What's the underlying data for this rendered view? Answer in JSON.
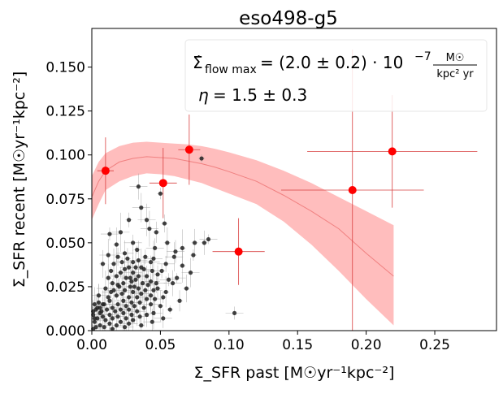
{
  "chart_data": {
    "type": "scatter",
    "title": "eso498-g5",
    "xlabel": "Σ_SFR past [M☉yr⁻¹kpc⁻²]",
    "ylabel": "Σ_SFR recent [M☉yr⁻¹kpc⁻²]",
    "xlim": [
      0.0,
      0.295
    ],
    "ylim": [
      0.0,
      0.172
    ],
    "xticks": [
      "0.00",
      "0.05",
      "0.10",
      "0.15",
      "0.20",
      "0.25"
    ],
    "yticks": [
      "0.000",
      "0.025",
      "0.050",
      "0.075",
      "0.100",
      "0.125",
      "0.150"
    ],
    "annotation": {
      "flow_label": "Σ̇",
      "flow_sub": "flow max",
      "flow_value": "= (2.0 ± 0.2) · 10",
      "flow_exp": "−7",
      "flow_unit_num": "M☉",
      "flow_unit_den": "kpc² yr",
      "eta_label": "η",
      "eta_value": "= 1.5 ± 0.3",
      "box_position": "top-right"
    },
    "model_curve": {
      "x": [
        0.0,
        0.005,
        0.01,
        0.02,
        0.03,
        0.04,
        0.05,
        0.06,
        0.07,
        0.08,
        0.09,
        0.1,
        0.12,
        0.14,
        0.16,
        0.18,
        0.2,
        0.22
      ],
      "y": [
        0.076,
        0.085,
        0.091,
        0.096,
        0.098,
        0.099,
        0.0985,
        0.098,
        0.0965,
        0.095,
        0.093,
        0.0905,
        0.085,
        0.077,
        0.068,
        0.058,
        0.044,
        0.031
      ],
      "upper": [
        0.088,
        0.096,
        0.101,
        0.105,
        0.107,
        0.1075,
        0.107,
        0.1065,
        0.106,
        0.105,
        0.1035,
        0.1015,
        0.097,
        0.091,
        0.084,
        0.076,
        0.068,
        0.06
      ],
      "lower": [
        0.063,
        0.072,
        0.08,
        0.085,
        0.088,
        0.0895,
        0.089,
        0.088,
        0.086,
        0.084,
        0.081,
        0.078,
        0.072,
        0.062,
        0.049,
        0.034,
        0.018,
        0.003
      ],
      "color": "#f08080",
      "band_color": "#ffbdbd"
    },
    "binned_points": [
      {
        "x": 0.01,
        "y": 0.091,
        "xerr": 0.006,
        "yerr": 0.019
      },
      {
        "x": 0.052,
        "y": 0.084,
        "xerr": 0.01,
        "yerr": 0.02
      },
      {
        "x": 0.071,
        "y": 0.103,
        "xerr": 0.008,
        "yerr": 0.02
      },
      {
        "x": 0.107,
        "y": 0.045,
        "xerr": 0.019,
        "yerr": 0.019
      },
      {
        "x": 0.19,
        "y": 0.08,
        "xerr": 0.052,
        "yerr": 0.08
      },
      {
        "x": 0.219,
        "y": 0.102,
        "xerr": 0.062,
        "yerr": 0.032
      }
    ],
    "binned_color": "#ff0000",
    "scatter_color": "#222222",
    "scatter_points": [
      [
        0.08,
        0.098
      ],
      [
        0.034,
        0.082
      ],
      [
        0.05,
        0.078
      ],
      [
        0.036,
        0.07
      ],
      [
        0.027,
        0.063
      ],
      [
        0.04,
        0.063
      ],
      [
        0.053,
        0.061
      ],
      [
        0.042,
        0.058
      ],
      [
        0.047,
        0.056
      ],
      [
        0.021,
        0.056
      ],
      [
        0.082,
        0.05
      ],
      [
        0.085,
        0.052
      ],
      [
        0.075,
        0.05
      ],
      [
        0.013,
        0.055
      ],
      [
        0.055,
        0.05
      ],
      [
        0.03,
        0.05
      ],
      [
        0.018,
        0.049
      ],
      [
        0.046,
        0.047
      ],
      [
        0.066,
        0.047
      ],
      [
        0.061,
        0.045
      ],
      [
        0.033,
        0.046
      ],
      [
        0.024,
        0.044
      ],
      [
        0.074,
        0.043
      ],
      [
        0.06,
        0.042
      ],
      [
        0.039,
        0.042
      ],
      [
        0.012,
        0.043
      ],
      [
        0.019,
        0.042
      ],
      [
        0.045,
        0.041
      ],
      [
        0.026,
        0.041
      ],
      [
        0.034,
        0.04
      ],
      [
        0.03,
        0.039
      ],
      [
        0.022,
        0.039
      ],
      [
        0.008,
        0.038
      ],
      [
        0.043,
        0.039
      ],
      [
        0.016,
        0.038
      ],
      [
        0.054,
        0.038
      ],
      [
        0.066,
        0.037
      ],
      [
        0.027,
        0.036
      ],
      [
        0.036,
        0.036
      ],
      [
        0.038,
        0.035
      ],
      [
        0.014,
        0.034
      ],
      [
        0.044,
        0.034
      ],
      [
        0.021,
        0.033
      ],
      [
        0.072,
        0.033
      ],
      [
        0.051,
        0.034
      ],
      [
        0.03,
        0.033
      ],
      [
        0.048,
        0.032
      ],
      [
        0.034,
        0.031
      ],
      [
        0.04,
        0.031
      ],
      [
        0.018,
        0.031
      ],
      [
        0.025,
        0.03
      ],
      [
        0.062,
        0.03
      ],
      [
        0.012,
        0.03
      ],
      [
        0.056,
        0.029
      ],
      [
        0.032,
        0.029
      ],
      [
        0.043,
        0.028
      ],
      [
        0.029,
        0.028
      ],
      [
        0.047,
        0.027
      ],
      [
        0.037,
        0.027
      ],
      [
        0.023,
        0.027
      ],
      [
        0.015,
        0.027
      ],
      [
        0.059,
        0.027
      ],
      [
        0.019,
        0.026
      ],
      [
        0.041,
        0.026
      ],
      [
        0.028,
        0.025
      ],
      [
        0.031,
        0.025
      ],
      [
        0.034,
        0.024
      ],
      [
        0.01,
        0.024
      ],
      [
        0.048,
        0.024
      ],
      [
        0.045,
        0.023
      ],
      [
        0.039,
        0.023
      ],
      [
        0.024,
        0.023
      ],
      [
        0.069,
        0.024
      ],
      [
        0.014,
        0.022
      ],
      [
        0.054,
        0.022
      ],
      [
        0.03,
        0.022
      ],
      [
        0.022,
        0.021
      ],
      [
        0.036,
        0.021
      ],
      [
        0.043,
        0.02
      ],
      [
        0.005,
        0.02
      ],
      [
        0.018,
        0.02
      ],
      [
        0.027,
        0.019
      ],
      [
        0.052,
        0.019
      ],
      [
        0.033,
        0.019
      ],
      [
        0.04,
        0.018
      ],
      [
        0.046,
        0.018
      ],
      [
        0.013,
        0.017
      ],
      [
        0.023,
        0.017
      ],
      [
        0.064,
        0.017
      ],
      [
        0.029,
        0.016
      ],
      [
        0.035,
        0.016
      ],
      [
        0.019,
        0.015
      ],
      [
        0.008,
        0.015
      ],
      [
        0.043,
        0.015
      ],
      [
        0.05,
        0.014
      ],
      [
        0.025,
        0.014
      ],
      [
        0.031,
        0.014
      ],
      [
        0.015,
        0.013
      ],
      [
        0.038,
        0.013
      ],
      [
        0.021,
        0.012
      ],
      [
        0.057,
        0.012
      ],
      [
        0.027,
        0.012
      ],
      [
        0.011,
        0.012
      ],
      [
        0.033,
        0.011
      ],
      [
        0.017,
        0.011
      ],
      [
        0.045,
        0.01
      ],
      [
        0.006,
        0.01
      ],
      [
        0.023,
        0.01
      ],
      [
        0.029,
        0.009
      ],
      [
        0.013,
        0.009
      ],
      [
        0.04,
        0.009
      ],
      [
        0.019,
        0.008
      ],
      [
        0.008,
        0.008
      ],
      [
        0.035,
        0.008
      ],
      [
        0.025,
        0.007
      ],
      [
        0.004,
        0.007
      ],
      [
        0.015,
        0.007
      ],
      [
        0.052,
        0.007
      ],
      [
        0.03,
        0.006
      ],
      [
        0.01,
        0.006
      ],
      [
        0.021,
        0.005
      ],
      [
        0.044,
        0.005
      ],
      [
        0.002,
        0.005
      ],
      [
        0.027,
        0.004
      ],
      [
        0.013,
        0.004
      ],
      [
        0.006,
        0.003
      ],
      [
        0.036,
        0.003
      ],
      [
        0.018,
        0.003
      ],
      [
        0.003,
        0.002
      ],
      [
        0.024,
        0.002
      ],
      [
        0.009,
        0.002
      ],
      [
        0.001,
        0.001
      ],
      [
        0.015,
        0.001
      ],
      [
        0.104,
        0.01
      ],
      [
        0.003,
        0.012
      ],
      [
        0.001,
        0.009
      ],
      [
        0.002,
        0.015
      ],
      [
        0.004,
        0.013
      ],
      [
        0.005,
        0.016
      ],
      [
        0.001,
        0.011
      ],
      [
        0.007,
        0.011
      ],
      [
        0.002,
        0.007
      ],
      [
        0.006,
        0.013
      ],
      [
        0.009,
        0.015
      ],
      [
        0.012,
        0.019
      ],
      [
        0.016,
        0.023
      ],
      [
        0.02,
        0.025
      ],
      [
        0.028,
        0.03
      ],
      [
        0.024,
        0.035
      ],
      [
        0.032,
        0.036
      ]
    ]
  }
}
